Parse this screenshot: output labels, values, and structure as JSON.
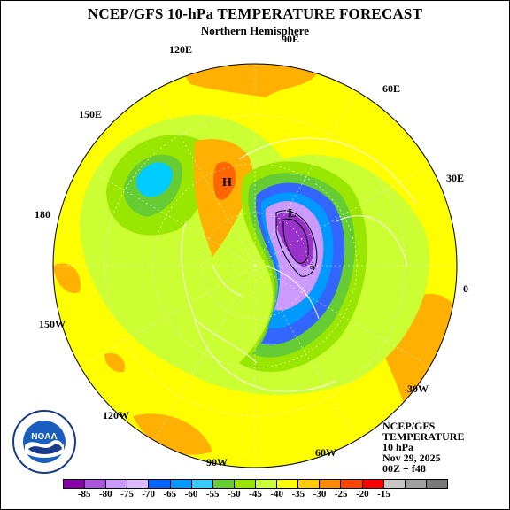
{
  "header": {
    "title": "NCEP/GFS 10-hPa TEMPERATURE FORECAST",
    "subtitle": "Northern Hemisphere"
  },
  "map": {
    "longitude_labels": {
      "lon_90E": "90E",
      "lon_120E": "120E",
      "lon_60E": "60E",
      "lon_150E": "150E",
      "lon_30E": "30E",
      "lon_180": "180",
      "lon_0": "0",
      "lon_150W": "150W",
      "lon_30W": "30W",
      "lon_120W": "120W",
      "lon_60W": "60W",
      "lon_90W": "90W"
    },
    "high_marker": "H",
    "low_marker": "L",
    "contour_label": "78",
    "colors": {
      "background_yellow": "#ffff00",
      "light_yellow_green": "#ccff33",
      "yellow_green": "#99e600",
      "green": "#66cc33",
      "orange": "#ffb000",
      "dark_orange": "#ff6600",
      "blue": "#0099ff",
      "light_blue": "#00ccff",
      "medium_blue": "#3366ff",
      "lavender": "#cc99ff",
      "purple": "#9933cc",
      "dark_purple": "#8800aa"
    }
  },
  "info": {
    "line1": "NCEP/GFS",
    "line2": "TEMPERATURE",
    "line3": "10 hPa",
    "line4": "Nov 29, 2025",
    "line5": "00Z + f48"
  },
  "logo": {
    "text": "NOAA",
    "icon": "noaa-logo"
  },
  "legend": {
    "colors": [
      "#8800aa",
      "#aa55dd",
      "#cc99ff",
      "#ddbbff",
      "#0066ff",
      "#0099ff",
      "#33ccff",
      "#66cc33",
      "#99e600",
      "#ccff33",
      "#ffff00",
      "#ffcc00",
      "#ff8c00",
      "#ff4400",
      "#ff0000",
      "#c8c8c8",
      "#a0a0a0",
      "#787878"
    ],
    "labels": [
      "-85",
      "-80",
      "-75",
      "-70",
      "-65",
      "-60",
      "-55",
      "-50",
      "-45",
      "-40",
      "-35",
      "-30",
      "-25",
      "-20",
      "-15"
    ]
  }
}
